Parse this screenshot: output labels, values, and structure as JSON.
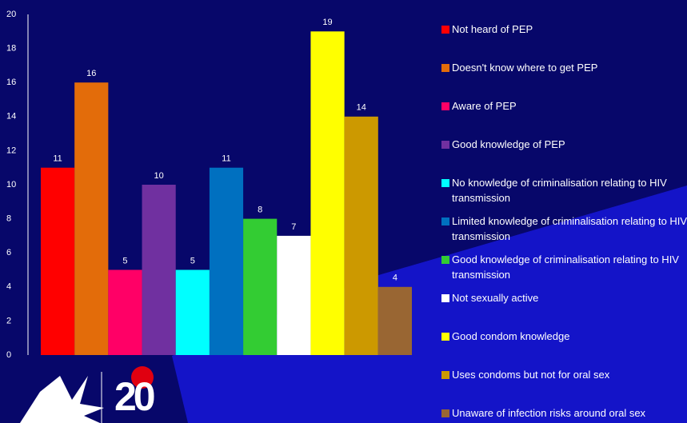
{
  "chart_data": {
    "type": "bar",
    "categories": [
      "Not heard of PEP",
      "Doesn't know where to get PEP",
      "Aware of PEP",
      "Good knowledge of PEP",
      "No knowledge of criminalisation relating to HIV transmission",
      "Limited knowledge of criminalisation relating to HIV transmission",
      "Good knowledge of criminalisation relating to HIV transmission",
      "Not sexually active",
      "Good condom knowledge",
      "Uses condoms but not for oral sex",
      "Unaware of infection risks around oral sex"
    ],
    "values": [
      11,
      16,
      5,
      10,
      5,
      11,
      8,
      7,
      19,
      14,
      4
    ],
    "colors": [
      "#ff0000",
      "#e36c0a",
      "#ff0066",
      "#7030a0",
      "#00ffff",
      "#0070c0",
      "#33cc33",
      "#ffffff",
      "#ffff00",
      "#cc9900",
      "#996633"
    ],
    "ylim": [
      0,
      20
    ],
    "yticks": [
      0,
      2,
      4,
      6,
      8,
      10,
      12,
      14,
      16,
      18,
      20
    ],
    "logo_text": "20"
  }
}
